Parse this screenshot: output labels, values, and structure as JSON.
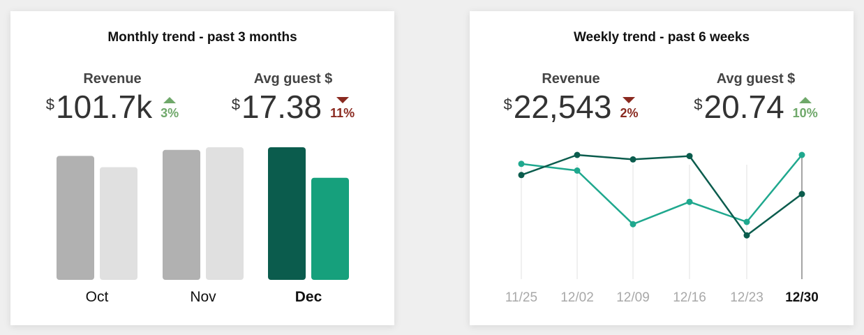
{
  "colors": {
    "bar_grey_dark": "#b1b1b1",
    "bar_grey_light": "#e0e0e0",
    "bar_highlight_dark": "#0b5c4d",
    "bar_highlight_light": "#16a07c",
    "line_dark": "#0b5c4d",
    "line_light": "#1fa88e",
    "up": "#6fa86a",
    "down": "#8a2a20"
  },
  "monthly": {
    "title": "Monthly trend - past 3 months",
    "revenue": {
      "label": "Revenue",
      "currency": "$",
      "value": "101.7k",
      "delta": "3%",
      "direction": "up"
    },
    "avg_guest": {
      "label": "Avg guest $",
      "currency": "$",
      "value": "17.38",
      "delta": "11%",
      "direction": "down"
    }
  },
  "weekly": {
    "title": "Weekly trend - past 6 weeks",
    "revenue": {
      "label": "Revenue",
      "currency": "$",
      "value": "22,543",
      "delta": "2%",
      "direction": "down"
    },
    "avg_guest": {
      "label": "Avg guest $",
      "currency": "$",
      "value": "20.74",
      "delta": "10%",
      "direction": "up"
    }
  },
  "chart_data": [
    {
      "type": "bar",
      "title": "Monthly trend - past 3 months",
      "categories": [
        "Oct",
        "Nov",
        "Dec"
      ],
      "highlight_category": "Dec",
      "ylim": [
        0,
        100
      ],
      "series": [
        {
          "name": "Revenue",
          "values": [
            93.5,
            98,
            100
          ]
        },
        {
          "name": "Avg guest $",
          "values": [
            85,
            100,
            77
          ]
        }
      ]
    },
    {
      "type": "line",
      "title": "Weekly trend - past 6 weeks",
      "categories": [
        "11/25",
        "12/02",
        "12/09",
        "12/16",
        "12/23",
        "12/30"
      ],
      "highlight_category": "12/30",
      "ylim": [
        0,
        100
      ],
      "series": [
        {
          "name": "Revenue",
          "values": [
            72,
            90,
            86,
            89,
            18,
            55
          ]
        },
        {
          "name": "Avg guest $",
          "values": [
            82,
            76,
            28,
            48,
            30,
            90
          ]
        }
      ]
    }
  ]
}
